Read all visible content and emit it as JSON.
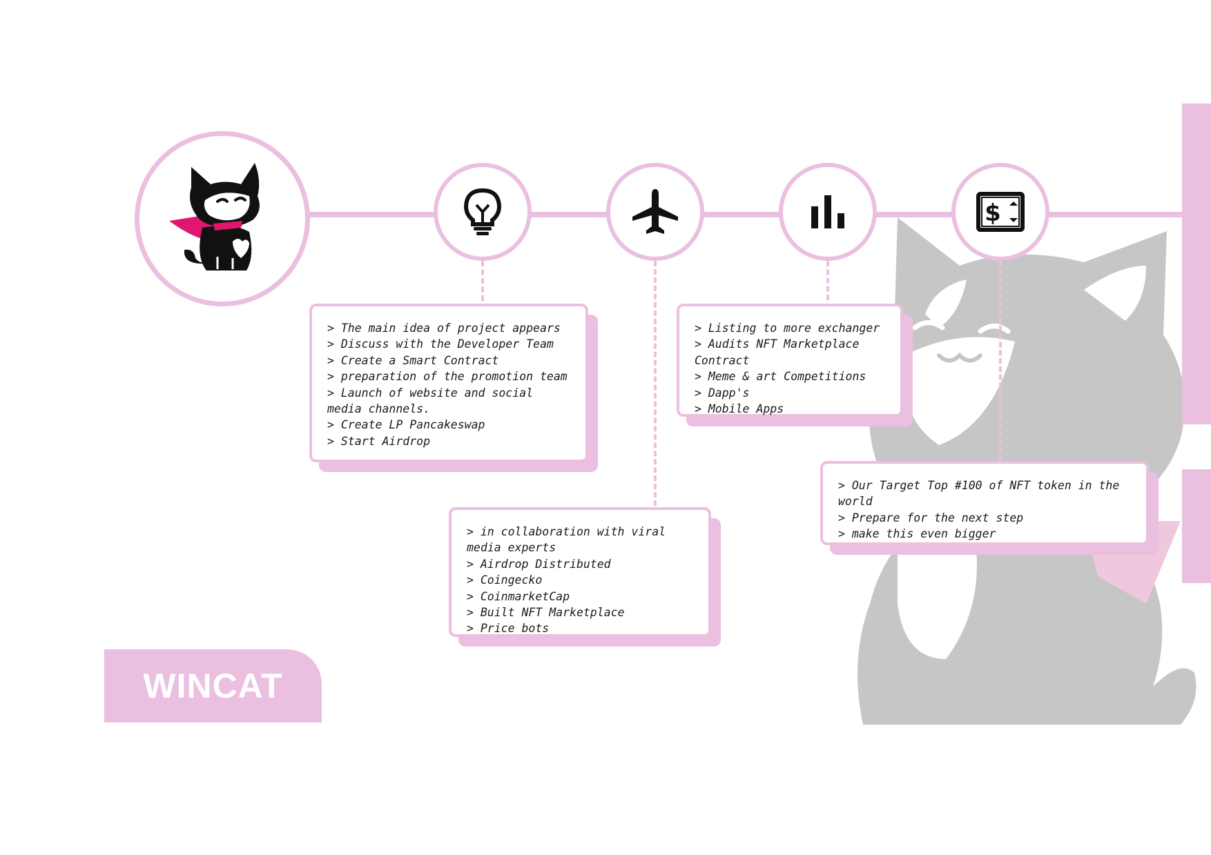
{
  "colors": {
    "accent": "#ebbfe0",
    "text": "#1a1a1a",
    "icon": "#111111",
    "magenta": "#e0176f",
    "watermark": "#c6c6c6"
  },
  "icons": {
    "logo": "cat-mascot-icon",
    "phase1": "lightbulb-icon",
    "phase2": "airplane-icon",
    "phase3": "bar-chart-icon",
    "phase4": "money-icon"
  },
  "phases": [
    {
      "lines": [
        "> The main idea of project appears",
        "> Discuss with the Developer Team",
        "> Create a Smart Contract",
        "> preparation of the promotion team",
        "> Launch of website and social media channels.",
        "> Create LP Pancakeswap",
        "> Start Airdrop"
      ]
    },
    {
      "lines": [
        "> in collaboration with viral media experts",
        "> Airdrop Distributed",
        "> Coingecko",
        "> CoinmarketCap",
        "> Built NFT Marketplace",
        "> Price bots"
      ]
    },
    {
      "lines": [
        "> Listing to more exchanger",
        "> Audits NFT Marketplace Contract",
        "> Meme & art Competitions",
        "> Dapp's",
        "> Mobile Apps"
      ]
    },
    {
      "lines": [
        "> Our Target Top #100 of NFT token in the world",
        "> Prepare for the next step",
        "> make this even bigger"
      ]
    }
  ],
  "brand": {
    "name": "WINCAT"
  }
}
